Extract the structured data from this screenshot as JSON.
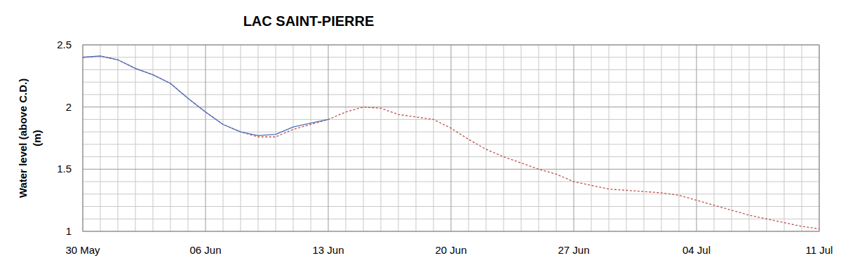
{
  "chart_data": {
    "type": "line",
    "title": "LAC SAINT-PIERRE",
    "ylabel": [
      "Water level (above C.D.)",
      "(m)"
    ],
    "x": [
      0,
      1,
      2,
      3,
      4,
      5,
      6,
      7,
      8,
      9,
      10,
      11,
      12,
      13,
      14,
      15,
      16,
      17,
      18,
      19,
      20,
      21,
      22,
      23,
      24,
      25,
      26,
      27,
      28,
      29,
      30,
      31,
      32,
      33,
      34,
      35,
      36,
      37,
      38,
      39,
      40,
      41,
      42
    ],
    "xlim": [
      0,
      42
    ],
    "xticks": [
      {
        "value": 0,
        "label": "30 May"
      },
      {
        "value": 7,
        "label": "06 Jun"
      },
      {
        "value": 14,
        "label": "13 Jun"
      },
      {
        "value": 21,
        "label": "20 Jun"
      },
      {
        "value": 28,
        "label": "27 Jun"
      },
      {
        "value": 35,
        "label": "04 Jul"
      },
      {
        "value": 42,
        "label": "11 Jul"
      }
    ],
    "ylim": [
      1,
      2.5
    ],
    "yticks": [
      1,
      1.5,
      2,
      2.5
    ],
    "grid": true,
    "series": [
      {
        "color": "#4a6fbd",
        "line_style": "solid",
        "values": [
          2.4,
          2.41,
          2.38,
          2.31,
          2.26,
          2.19,
          2.07,
          1.96,
          1.86,
          1.8,
          1.77,
          1.78,
          1.84,
          1.87,
          1.9,
          null,
          null,
          null,
          null,
          null,
          null,
          null,
          null,
          null,
          null,
          null,
          null,
          null,
          null,
          null,
          null,
          null,
          null,
          null,
          null,
          null,
          null,
          null,
          null,
          null,
          null,
          null,
          null
        ]
      },
      {
        "color": "#c0504d",
        "line_style": "dashed",
        "values": [
          2.4,
          2.41,
          2.38,
          2.31,
          2.26,
          2.19,
          2.07,
          1.96,
          1.86,
          1.8,
          1.76,
          1.76,
          1.82,
          1.86,
          1.9,
          1.96,
          2.0,
          1.99,
          1.94,
          1.92,
          1.9,
          1.83,
          1.74,
          1.66,
          1.6,
          1.55,
          1.5,
          1.46,
          1.4,
          1.37,
          1.34,
          1.33,
          1.32,
          1.31,
          1.29,
          1.25,
          1.21,
          1.17,
          1.13,
          1.1,
          1.07,
          1.04,
          1.02
        ]
      }
    ]
  }
}
